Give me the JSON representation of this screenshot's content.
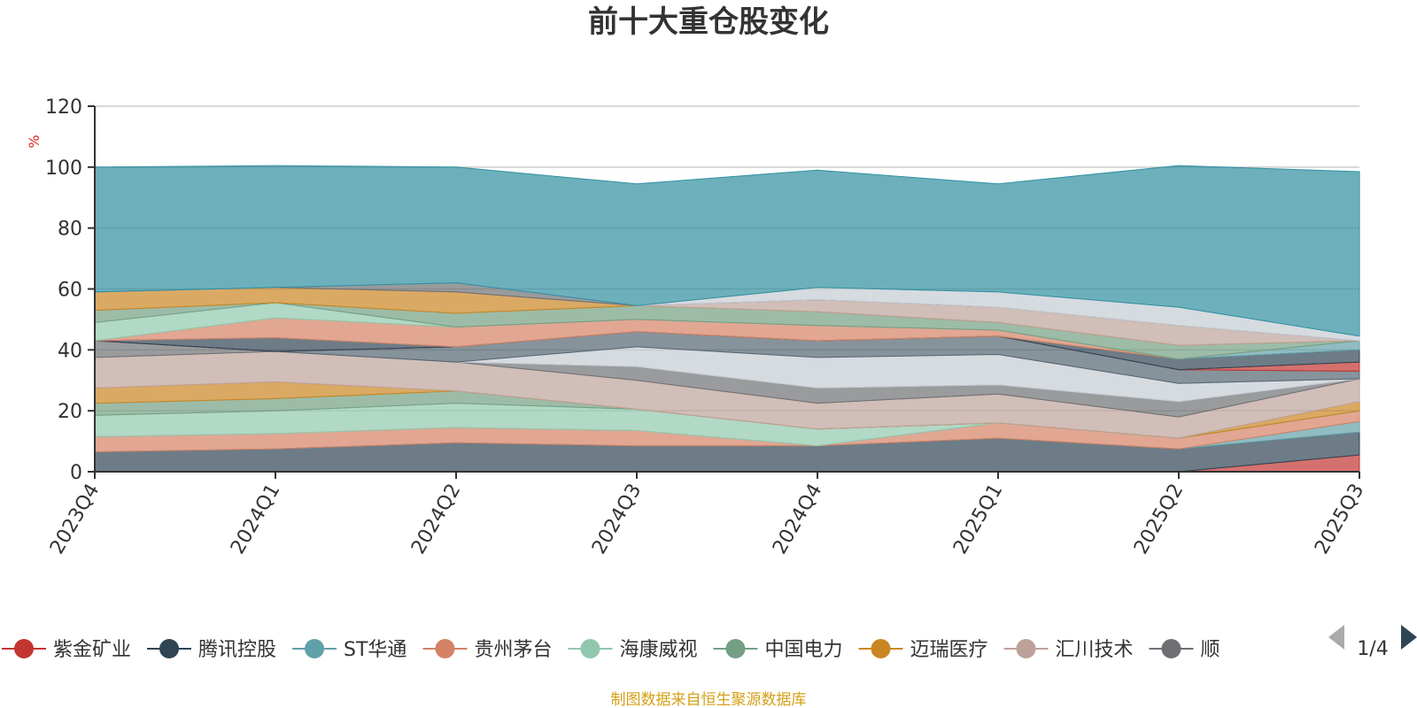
{
  "chart_data": {
    "type": "area",
    "title": "前十大重仓股变化",
    "ylabel": "%",
    "ylim": [
      0,
      120
    ],
    "yticks": [
      0,
      20,
      40,
      60,
      80,
      100,
      120
    ],
    "grid": true,
    "stacked": true,
    "categories": [
      "2023Q4",
      "2024Q1",
      "2024Q2",
      "2024Q3",
      "2024Q4",
      "2025Q1",
      "2025Q2",
      "2025Q3"
    ],
    "series": [
      {
        "name": "紫金矿业",
        "color": "#c23531",
        "values": [
          0,
          0,
          0,
          0,
          0,
          0,
          0,
          5.5
        ]
      },
      {
        "name": "腾讯控股",
        "color": "#2f4554",
        "values": [
          6.5,
          7.5,
          9.5,
          8.5,
          8.5,
          11,
          7.5,
          7.5
        ]
      },
      {
        "name": "ST华通",
        "color": "#61a0a8",
        "values": [
          0,
          0,
          0,
          0,
          0,
          0,
          0,
          3.5
        ]
      },
      {
        "name": "贵州茅台",
        "color": "#d48265",
        "values": [
          5,
          5,
          5,
          5,
          0,
          5,
          3.5,
          3.5
        ]
      },
      {
        "name": "海康威视",
        "color": "#91c7ae",
        "values": [
          7,
          7.5,
          8,
          7,
          5.5,
          0,
          0,
          0
        ]
      },
      {
        "name": "中国电力",
        "color": "#749f83",
        "values": [
          4,
          4,
          4,
          0,
          0,
          0,
          0,
          0
        ]
      },
      {
        "name": "迈瑞医疗",
        "color": "#ca8622",
        "values": [
          5,
          5.5,
          0,
          0,
          0,
          0,
          0,
          3
        ]
      },
      {
        "name": "汇川技术",
        "color": "#bda29a",
        "values": [
          10,
          10,
          9.5,
          9.5,
          8.5,
          9.5,
          7,
          7.5
        ]
      },
      {
        "name": "顺丰控股",
        "values": [
          5.5,
          0,
          0,
          4.5,
          5,
          3,
          5,
          0
        ]
      },
      {
        "name": "",
        "values": [
          0,
          0,
          0,
          6.5,
          10,
          10,
          6,
          0
        ]
      },
      {
        "name": "",
        "values": [
          0,
          0,
          5,
          5,
          5.5,
          6,
          4.5,
          2.5
        ]
      },
      {
        "name": "",
        "values": [
          0,
          0,
          0,
          0,
          0,
          0,
          0,
          3
        ]
      },
      {
        "name": "",
        "values": [
          0,
          4.5,
          0,
          0,
          0,
          0,
          3.5,
          4
        ]
      },
      {
        "name": "",
        "values": [
          0,
          0,
          0,
          0,
          0,
          0,
          0,
          3
        ]
      },
      {
        "name": "",
        "values": [
          0,
          6.5,
          6.5,
          4,
          5,
          2,
          0,
          0
        ]
      },
      {
        "name": "",
        "values": [
          6,
          5,
          0,
          0,
          0,
          0,
          0,
          0
        ]
      },
      {
        "name": "",
        "values": [
          4,
          0,
          4.5,
          4.5,
          4.5,
          2.5,
          4.5,
          0
        ]
      },
      {
        "name": "",
        "values": [
          6,
          5,
          7,
          0,
          0,
          0,
          0,
          0
        ]
      },
      {
        "name": "",
        "values": [
          0,
          0,
          0,
          0,
          4,
          5,
          6.5,
          0
        ]
      },
      {
        "name": "",
        "values": [
          0,
          0,
          3,
          0,
          0,
          0,
          0,
          0
        ]
      },
      {
        "name": "",
        "values": [
          0,
          0,
          0,
          0,
          4,
          5,
          6,
          1.5
        ]
      },
      {
        "name": "",
        "values": [
          41,
          40,
          38,
          40,
          38.5,
          35.5,
          46.5,
          54
        ]
      }
    ],
    "legend": {
      "position": "bottom",
      "items": [
        "紫金矿业",
        "腾讯控股",
        "ST华通",
        "贵州茅台",
        "海康威视",
        "中国电力",
        "迈瑞医疗",
        "汇川技术",
        "顺"
      ],
      "page": "1/4"
    },
    "source": "制图数据来自恒生聚源数据库"
  },
  "palette": [
    "#c23531",
    "#2f4554",
    "#61a0a8",
    "#d48265",
    "#91c7ae",
    "#749f83",
    "#ca8622",
    "#bda29a",
    "#6e7074",
    "#c4ccd3",
    "#546570",
    "#c23531",
    "#2f4554",
    "#61a0a8",
    "#d48265",
    "#91c7ae",
    "#749f83",
    "#ca8622",
    "#bda29a",
    "#6e7074",
    "#c4ccd3",
    "#2f8fa0"
  ]
}
